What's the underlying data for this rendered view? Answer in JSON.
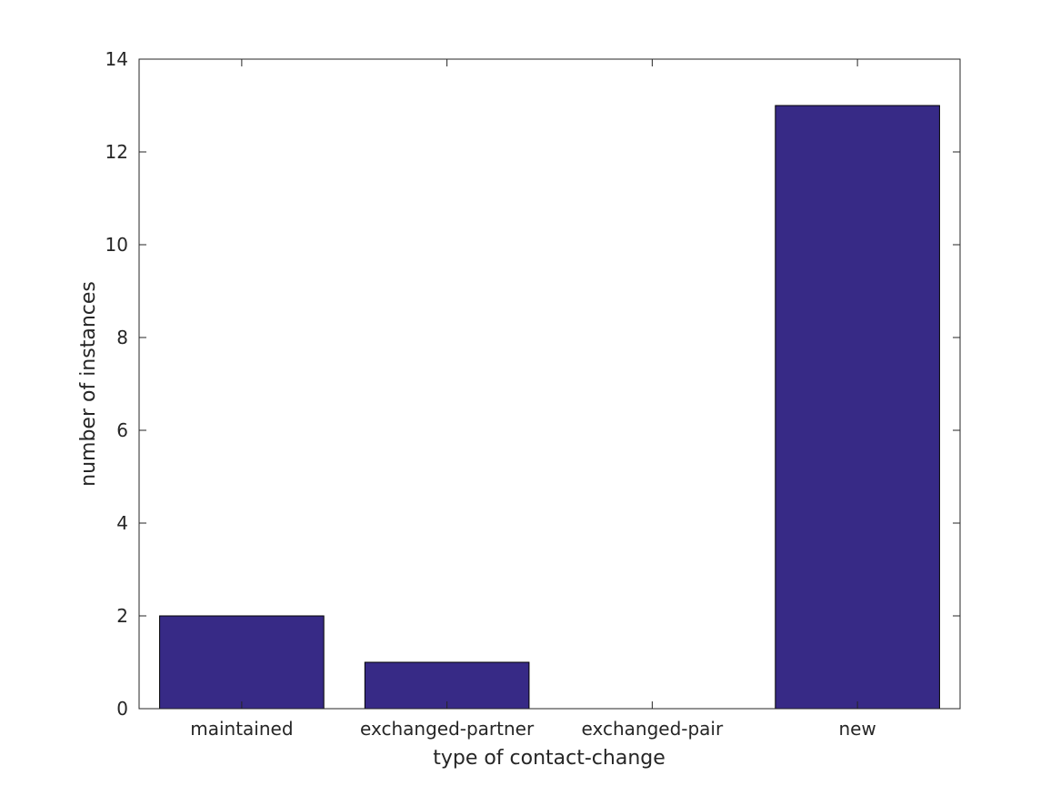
{
  "chart_data": {
    "type": "bar",
    "categories": [
      "maintained",
      "exchanged-partner",
      "exchanged-pair",
      "new"
    ],
    "values": [
      2,
      1,
      0,
      13
    ],
    "title": "",
    "xlabel": "type of contact-change",
    "ylabel": "number of instances",
    "ylim": [
      0,
      14
    ],
    "yticks": [
      0,
      2,
      4,
      6,
      8,
      10,
      12,
      14
    ],
    "grid": false,
    "legend": "none",
    "bar_color": "#372a86",
    "edge_color": "#000000",
    "axis_color": "#262626"
  }
}
